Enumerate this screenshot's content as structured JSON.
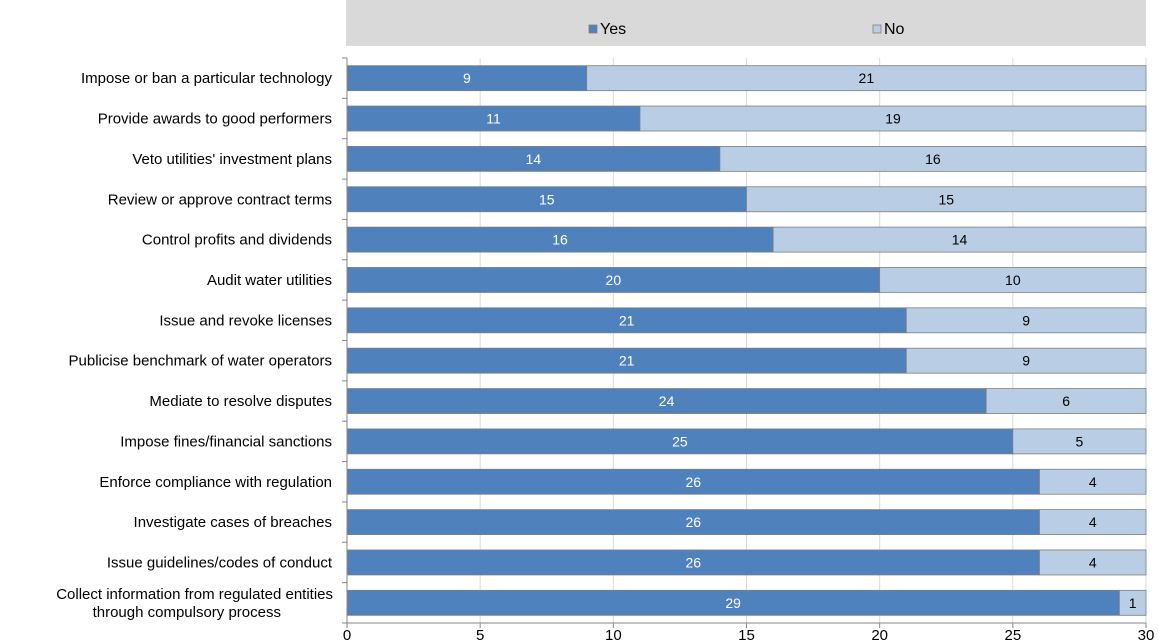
{
  "chart_data": {
    "type": "bar",
    "orientation": "horizontal",
    "stacked": true,
    "title": "",
    "xlabel": "",
    "ylabel": "",
    "xlim": [
      0,
      30
    ],
    "x_ticks": [
      0,
      5,
      10,
      15,
      20,
      25,
      30
    ],
    "grid": "vertical",
    "legend_position": "top",
    "categories": [
      "Impose or ban a particular technology",
      "Provide awards to good performers",
      "Veto utilities' investment plans",
      "Review or approve contract terms",
      "Control profits and dividends",
      "Audit water utilities",
      "Issue and revoke licenses",
      "Publicise  benchmark of water operators",
      "Mediate to resolve disputes",
      "Impose fines/financial sanctions",
      "Enforce compliance with regulation",
      "Investigate cases of breaches",
      "Issue guidelines/codes of conduct",
      "Collect information from regulated entities through compulsory process"
    ],
    "series": [
      {
        "name": "Yes",
        "color": "#4f81bd",
        "label_color": "#ffffff",
        "values": [
          9,
          11,
          14,
          15,
          16,
          20,
          21,
          21,
          24,
          25,
          26,
          26,
          26,
          29
        ]
      },
      {
        "name": "No",
        "color": "#b9cde5",
        "label_color": "#000000",
        "values": [
          21,
          19,
          16,
          15,
          14,
          10,
          9,
          9,
          6,
          5,
          4,
          4,
          4,
          1
        ]
      }
    ]
  }
}
